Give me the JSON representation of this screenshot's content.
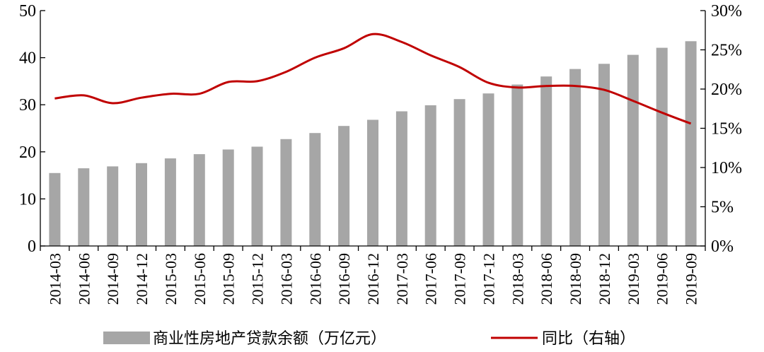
{
  "chart_data": {
    "type": "bar",
    "categories": [
      "2014-03",
      "2014-06",
      "2014-09",
      "2014-12",
      "2015-03",
      "2015-06",
      "2015-09",
      "2015-12",
      "2016-03",
      "2016-06",
      "2016-09",
      "2016-12",
      "2017-03",
      "2017-06",
      "2017-09",
      "2017-12",
      "2018-03",
      "2018-06",
      "2018-09",
      "2018-12",
      "2019-03",
      "2019-06",
      "2019-09"
    ],
    "series": [
      {
        "name": "商业性房地产贷款余额（万亿元）",
        "type": "bar",
        "axis": "left",
        "color": "#a6a6a6",
        "values": [
          15.5,
          16.5,
          16.9,
          17.6,
          18.6,
          19.5,
          20.5,
          21.1,
          22.7,
          24.0,
          25.5,
          26.8,
          28.6,
          29.9,
          31.2,
          32.4,
          34.3,
          36.0,
          37.6,
          38.7,
          40.6,
          42.1,
          43.5
        ]
      },
      {
        "name": "同比（右轴）",
        "type": "line",
        "axis": "right",
        "color": "#c00000",
        "values": [
          18.8,
          19.2,
          18.2,
          18.9,
          19.4,
          19.4,
          20.9,
          21.0,
          22.2,
          24.0,
          25.2,
          27.0,
          26.0,
          24.3,
          22.8,
          20.8,
          20.2,
          20.4,
          20.4,
          19.9,
          18.5,
          17.0,
          15.6
        ]
      }
    ],
    "ylim_left": [
      0,
      50
    ],
    "yticks_left": [
      "0",
      "10",
      "20",
      "30",
      "40",
      "50"
    ],
    "ylim_right": [
      0,
      30
    ],
    "yticks_right": [
      "0%",
      "5%",
      "10%",
      "15%",
      "20%",
      "25%",
      "30%"
    ],
    "grid": false,
    "legend_position": "bottom"
  }
}
